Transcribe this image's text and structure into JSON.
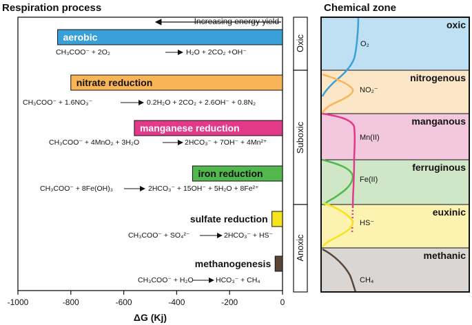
{
  "left_panel": {
    "title": "Respiration process",
    "arrow_label": "Increasing energy yield",
    "x_axis_label": "ΔG (Kj)",
    "x_ticks": [
      "-1000",
      "-800",
      "-600",
      "-400",
      "-200",
      "0"
    ],
    "processes": [
      {
        "label": "aerobic",
        "color": "#3aa0d8",
        "label_color": "#ffffff",
        "delta_g": -850,
        "equation": [
          [
            "CH",
            "3",
            "COO",
            "-",
            " + 2O",
            "2",
            " → H",
            "2",
            "O + 2CO",
            "2",
            " +OH",
            "-"
          ]
        ]
      },
      {
        "label": "nitrate reduction",
        "color": "#f9b457",
        "label_color": "#111111",
        "delta_g": -800,
        "equation": []
      },
      {
        "label": "manganese reduction",
        "color": "#e2398a",
        "label_color": "#ffffff",
        "delta_g": -560,
        "equation": []
      },
      {
        "label": "iron reduction",
        "color": "#52b74d",
        "label_color": "#111111",
        "delta_g": -340,
        "equation": []
      },
      {
        "label": "sulfate reduction",
        "color": "#f5e31d",
        "label_color": "#111111",
        "delta_g": -40,
        "equation": []
      },
      {
        "label": "methanogenesis",
        "color": "#5a4636",
        "label_color": "#111111",
        "delta_g": -28,
        "equation": []
      }
    ],
    "equations": {
      "aerobic": {
        "lhs": "CH₃COO⁻ + 2O₂",
        "rhs": "H₂O + 2CO₂ +OH⁻"
      },
      "nitrate": {
        "lhs": "CH₃COO⁻ + 1.6NO₃⁻",
        "rhs": "0.2H₂O + 2CO₂ + 2.6OH⁻ + 0.8N₂"
      },
      "manganese": {
        "lhs": "CH₃COO⁻ + 4MnO₂ + 3H₂O",
        "rhs": "2HCO₃⁻ + 7OH⁻ + 4Mn²⁺"
      },
      "iron": {
        "lhs": "CH₃COO⁻ + 8Fe(OH)₃",
        "rhs": "2HCO₃⁻ + 15OH⁻ + 5H₂O + 8Fe²⁺"
      },
      "sulfate": {
        "lhs": "CH₃COO⁻ + SO₄²⁻",
        "rhs": "2HCO₃⁻ + HS⁻"
      },
      "methanogenesis": {
        "lhs": "CH₃COO⁻ + H₂O",
        "rhs": "HCO₃⁻ + CH₄"
      }
    }
  },
  "side_labels": [
    "Oxic",
    "Suboxic",
    "Anoxic"
  ],
  "right_panel": {
    "title": "Chemical zone",
    "zones": [
      {
        "name": "oxic",
        "color": "#bfe0f2"
      },
      {
        "name": "nitrogenous",
        "color": "#fbe6c8"
      },
      {
        "name": "manganous",
        "color": "#f3c7dd"
      },
      {
        "name": "ferruginous",
        "color": "#cfe7c6"
      },
      {
        "name": "euxinic",
        "color": "#fdf3b1"
      },
      {
        "name": "methanic",
        "color": "#d9d6d3"
      }
    ],
    "species": [
      "O₂",
      "NO₂⁻",
      "Mn(II)",
      "Fe(II)",
      "HS⁻",
      "CH₄"
    ]
  }
}
